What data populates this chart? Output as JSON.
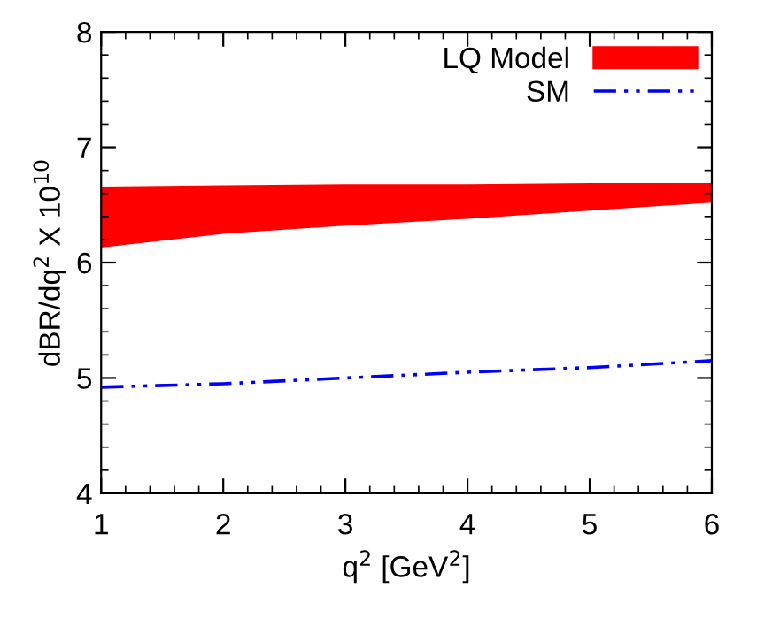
{
  "chart_data": {
    "type": "line",
    "xlabel": "q$^{2}$ [GeV$^{2}$]",
    "ylabel": "dBR/dq$^{2}$ X 10$^{10}$",
    "x": [
      1,
      2,
      3,
      4,
      5,
      6
    ],
    "series": [
      {
        "name": "LQ Model",
        "color": "#ff0000",
        "values": [
          null,
          null,
          null,
          null,
          null,
          null
        ],
        "lower": [
          6.13,
          6.25,
          6.32,
          6.38,
          6.45,
          6.52
        ],
        "upper": [
          6.66,
          6.67,
          6.68,
          6.68,
          6.69,
          6.69
        ]
      },
      {
        "name": "SM",
        "color": "#0000ff",
        "line_style": "dashed",
        "values": [
          4.92,
          4.95,
          5.0,
          5.05,
          5.09,
          5.15
        ]
      }
    ],
    "xlim": [
      1,
      6
    ],
    "xticks": [
      1,
      2,
      3,
      4,
      5,
      6
    ],
    "ylim": [
      4,
      8
    ],
    "yticks": [
      4,
      5,
      6,
      7,
      8
    ],
    "legend": "top right",
    "grid": false
  }
}
